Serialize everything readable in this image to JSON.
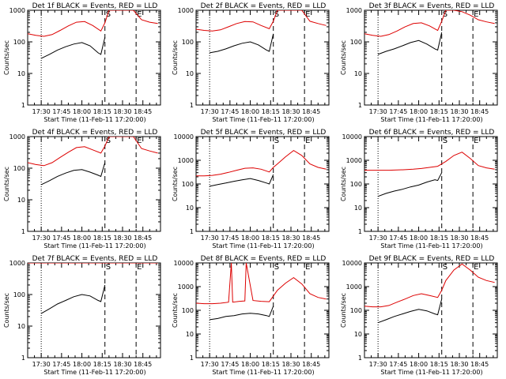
{
  "colors": {
    "events": "#000000",
    "lld": "#dd0000",
    "axis": "#000000",
    "background": "#ffffff"
  },
  "common": {
    "xlabel": "Start Time (11-Feb-11 17:20:00)",
    "ylabel": "Counts/sec",
    "xticks": [
      "17:30",
      "17:45",
      "18:00",
      "18:15",
      "18:30",
      "18:45"
    ],
    "yticks": [
      "1",
      "10",
      "100",
      "1000"
    ],
    "yticks_big": [
      "1",
      "10",
      "100",
      "1000",
      "10000"
    ],
    "markers": {
      "s": "S",
      "e": "E"
    }
  },
  "chart_data": [
    {
      "type": "line",
      "title": "Det 1f BLACK = Events, RED = LLD",
      "ylim": [
        1,
        1000
      ],
      "xlim": [
        "17:20",
        "18:58"
      ],
      "log_y": true,
      "markers": {
        "dotted": "17:30",
        "S": "18:17",
        "E": "18:40"
      },
      "series": [
        {
          "name": "BLACK = Events",
          "x": [
            "17:30",
            "17:36",
            "17:42",
            "17:48",
            "17:54",
            "18:00",
            "18:06",
            "18:12",
            "18:14",
            "18:17"
          ],
          "y": [
            30,
            40,
            55,
            70,
            85,
            95,
            75,
            45,
            40,
            140
          ]
        },
        {
          "name": "RED = LLD",
          "x": [
            "17:20",
            "17:26",
            "17:32",
            "17:38",
            "17:44",
            "17:50",
            "17:56",
            "18:02",
            "18:08",
            "18:14",
            "18:17",
            "18:20",
            "18:26",
            "18:32",
            "18:38",
            "18:44",
            "18:50",
            "18:56"
          ],
          "y": [
            180,
            160,
            150,
            170,
            230,
            320,
            420,
            440,
            330,
            220,
            400,
            1000,
            1000,
            1000,
            1000,
            500,
            420,
            380
          ]
        }
      ]
    },
    {
      "type": "line",
      "title": "Det 2f BLACK = Events, RED = LLD",
      "ylim": [
        1,
        1000
      ],
      "xlim": [
        "17:20",
        "18:58"
      ],
      "log_y": true,
      "markers": {
        "dotted": "17:30",
        "S": "18:17",
        "E": "18:40"
      },
      "series": [
        {
          "name": "BLACK = Events",
          "x": [
            "17:30",
            "17:36",
            "17:42",
            "17:48",
            "17:54",
            "18:00",
            "18:06",
            "18:12",
            "18:14",
            "18:17"
          ],
          "y": [
            45,
            50,
            60,
            75,
            90,
            100,
            80,
            55,
            50,
            180
          ]
        },
        {
          "name": "RED = LLD",
          "x": [
            "17:20",
            "17:26",
            "17:32",
            "17:38",
            "17:44",
            "17:50",
            "17:56",
            "18:02",
            "18:08",
            "18:14",
            "18:17",
            "18:20",
            "18:26",
            "18:32",
            "18:38",
            "18:44",
            "18:50",
            "18:56"
          ],
          "y": [
            250,
            230,
            220,
            240,
            300,
            380,
            440,
            430,
            330,
            260,
            450,
            1000,
            1000,
            1000,
            1000,
            450,
            380,
            330
          ]
        }
      ]
    },
    {
      "type": "line",
      "title": "Det 3f BLACK = Events, RED = LLD",
      "ylim": [
        1,
        1000
      ],
      "xlim": [
        "17:20",
        "18:58"
      ],
      "log_y": true,
      "markers": {
        "dotted": "17:30",
        "S": "18:17",
        "E": "18:40"
      },
      "series": [
        {
          "name": "BLACK = Events",
          "x": [
            "17:30",
            "17:36",
            "17:42",
            "17:48",
            "17:54",
            "18:00",
            "18:06",
            "18:12",
            "18:14",
            "18:17"
          ],
          "y": [
            40,
            50,
            60,
            75,
            95,
            110,
            85,
            60,
            55,
            200
          ]
        },
        {
          "name": "RED = LLD",
          "x": [
            "17:20",
            "17:26",
            "17:32",
            "17:38",
            "17:44",
            "17:50",
            "17:56",
            "18:02",
            "18:08",
            "18:14",
            "18:17",
            "18:20",
            "18:26",
            "18:32",
            "18:38",
            "18:44",
            "18:50",
            "18:56"
          ],
          "y": [
            180,
            160,
            150,
            170,
            220,
            300,
            380,
            400,
            320,
            230,
            450,
            1000,
            1000,
            900,
            700,
            500,
            430,
            380
          ]
        }
      ]
    },
    {
      "type": "line",
      "title": "Det 4f BLACK = Events, RED = LLD",
      "ylim": [
        1,
        1000
      ],
      "xlim": [
        "17:20",
        "18:58"
      ],
      "log_y": true,
      "markers": {
        "dotted": "17:30",
        "S": "18:17",
        "E": "18:40"
      },
      "series": [
        {
          "name": "BLACK = Events",
          "x": [
            "17:30",
            "17:36",
            "17:42",
            "17:48",
            "17:54",
            "18:00",
            "18:06",
            "18:12",
            "18:14",
            "18:17"
          ],
          "y": [
            30,
            40,
            55,
            70,
            85,
            90,
            75,
            60,
            55,
            150
          ]
        },
        {
          "name": "RED = LLD",
          "x": [
            "17:20",
            "17:26",
            "17:32",
            "17:38",
            "17:44",
            "17:50",
            "17:56",
            "18:02",
            "18:08",
            "18:14",
            "18:17",
            "18:20",
            "18:26",
            "18:32",
            "18:38",
            "18:44",
            "18:50",
            "18:56"
          ],
          "y": [
            150,
            130,
            120,
            150,
            220,
            320,
            450,
            480,
            380,
            300,
            500,
            1000,
            1000,
            1000,
            1000,
            420,
            350,
            300
          ]
        }
      ]
    },
    {
      "type": "line",
      "title": "Det 5f BLACK = Events, RED = LLD",
      "ylim": [
        1,
        10000
      ],
      "xlim": [
        "17:20",
        "18:58"
      ],
      "log_y": true,
      "markers": {
        "dotted": "17:30",
        "S": "18:17",
        "E": "18:40"
      },
      "series": [
        {
          "name": "BLACK = Events",
          "x": [
            "17:30",
            "17:36",
            "17:42",
            "17:48",
            "17:54",
            "18:00",
            "18:06",
            "18:12",
            "18:14",
            "18:17"
          ],
          "y": [
            80,
            95,
            110,
            130,
            150,
            170,
            140,
            110,
            100,
            250
          ]
        },
        {
          "name": "RED = LLD",
          "x": [
            "17:20",
            "17:26",
            "17:32",
            "17:38",
            "17:44",
            "17:50",
            "17:56",
            "18:02",
            "18:08",
            "18:14",
            "18:17",
            "18:20",
            "18:26",
            "18:32",
            "18:38",
            "18:44",
            "18:50",
            "18:56"
          ],
          "y": [
            220,
            220,
            230,
            260,
            310,
            380,
            460,
            480,
            420,
            320,
            500,
            700,
            1400,
            2600,
            1600,
            700,
            500,
            420
          ]
        }
      ]
    },
    {
      "type": "line",
      "title": "Det 6f BLACK = Events, RED = LLD",
      "ylim": [
        1,
        10000
      ],
      "xlim": [
        "17:20",
        "18:58"
      ],
      "log_y": true,
      "markers": {
        "dotted": "17:30",
        "S": "18:17",
        "E": "18:40"
      },
      "series": [
        {
          "name": "BLACK = Events",
          "x": [
            "17:30",
            "17:36",
            "17:42",
            "17:48",
            "17:54",
            "18:00",
            "18:06",
            "18:12",
            "18:14",
            "18:17"
          ],
          "y": [
            30,
            40,
            50,
            60,
            75,
            90,
            120,
            150,
            140,
            300
          ]
        },
        {
          "name": "RED = LLD",
          "x": [
            "17:20",
            "17:26",
            "17:32",
            "17:38",
            "17:44",
            "17:50",
            "17:56",
            "18:02",
            "18:08",
            "18:14",
            "18:17",
            "18:20",
            "18:26",
            "18:32",
            "18:38",
            "18:44",
            "18:50",
            "18:56"
          ],
          "y": [
            380,
            380,
            380,
            380,
            390,
            400,
            420,
            450,
            500,
            560,
            700,
            900,
            1600,
            2200,
            1200,
            600,
            480,
            420
          ]
        }
      ]
    },
    {
      "type": "line",
      "title": "Det 7f BLACK = Events, RED = LLD",
      "ylim": [
        1,
        1000
      ],
      "xlim": [
        "17:20",
        "18:58"
      ],
      "log_y": true,
      "markers": {
        "dotted": "17:30",
        "S": "18:17",
        "E": "18:40"
      },
      "series": [
        {
          "name": "BLACK = Events",
          "x": [
            "17:30",
            "17:36",
            "17:42",
            "17:48",
            "17:54",
            "18:00",
            "18:06",
            "18:12",
            "18:14",
            "18:17"
          ],
          "y": [
            25,
            35,
            50,
            65,
            85,
            100,
            90,
            65,
            60,
            200
          ]
        },
        {
          "name": "RED = LLD",
          "x": [
            "17:20",
            "17:26",
            "17:32",
            "17:38",
            "17:44",
            "17:50",
            "17:56",
            "18:02",
            "18:08",
            "18:14",
            "18:17",
            "18:20",
            "18:26",
            "18:32",
            "18:38",
            "18:44",
            "18:50",
            "18:56"
          ],
          "y": [
            1000,
            1000,
            1000,
            1000,
            1000,
            1000,
            1000,
            1000,
            1000,
            1000,
            1000,
            1000,
            1000,
            1000,
            1000,
            1000,
            1000,
            1000
          ]
        }
      ]
    },
    {
      "type": "line",
      "title": "Det 8f BLACK = Events, RED = LLD",
      "ylim": [
        1,
        10000
      ],
      "xlim": [
        "17:20",
        "18:58"
      ],
      "log_y": true,
      "markers": {
        "dotted": "17:30",
        "S": "18:17",
        "E": "18:40"
      },
      "series": [
        {
          "name": "BLACK = Events",
          "x": [
            "17:30",
            "17:36",
            "17:42",
            "17:48",
            "17:54",
            "18:00",
            "18:06",
            "18:12",
            "18:14",
            "18:17"
          ],
          "y": [
            40,
            45,
            55,
            60,
            70,
            75,
            70,
            60,
            55,
            150
          ]
        },
        {
          "name": "RED = LLD",
          "x": [
            "17:20",
            "17:26",
            "17:32",
            "17:38",
            "17:44",
            "17:46",
            "17:47",
            "17:52",
            "17:56",
            "17:57",
            "18:02",
            "18:08",
            "18:14",
            "18:17",
            "18:20",
            "18:26",
            "18:32",
            "18:38",
            "18:44",
            "18:50",
            "18:56"
          ],
          "y": [
            200,
            190,
            190,
            200,
            220,
            10000,
            220,
            240,
            250,
            10000,
            260,
            240,
            230,
            400,
            700,
            1400,
            2400,
            1300,
            500,
            350,
            300
          ]
        }
      ]
    },
    {
      "type": "line",
      "title": "Det 9f BLACK = Events, RED = LLD",
      "ylim": [
        1,
        10000
      ],
      "xlim": [
        "17:20",
        "18:58"
      ],
      "log_y": true,
      "markers": {
        "dotted": "17:30",
        "S": "18:17",
        "E": "18:40"
      },
      "series": [
        {
          "name": "BLACK = Events",
          "x": [
            "17:30",
            "17:36",
            "17:42",
            "17:48",
            "17:54",
            "18:00",
            "18:06",
            "18:12",
            "18:14",
            "18:17"
          ],
          "y": [
            30,
            40,
            55,
            70,
            90,
            110,
            95,
            70,
            65,
            300
          ]
        },
        {
          "name": "RED = LLD",
          "x": [
            "17:20",
            "17:26",
            "17:32",
            "17:38",
            "17:44",
            "17:50",
            "17:56",
            "18:02",
            "18:08",
            "18:14",
            "18:17",
            "18:20",
            "18:26",
            "18:32",
            "18:38",
            "18:44",
            "18:50",
            "18:56"
          ],
          "y": [
            150,
            140,
            140,
            160,
            220,
            300,
            420,
            500,
            420,
            350,
            700,
            1800,
            5000,
            9000,
            5000,
            2500,
            1800,
            1500
          ]
        }
      ]
    }
  ]
}
